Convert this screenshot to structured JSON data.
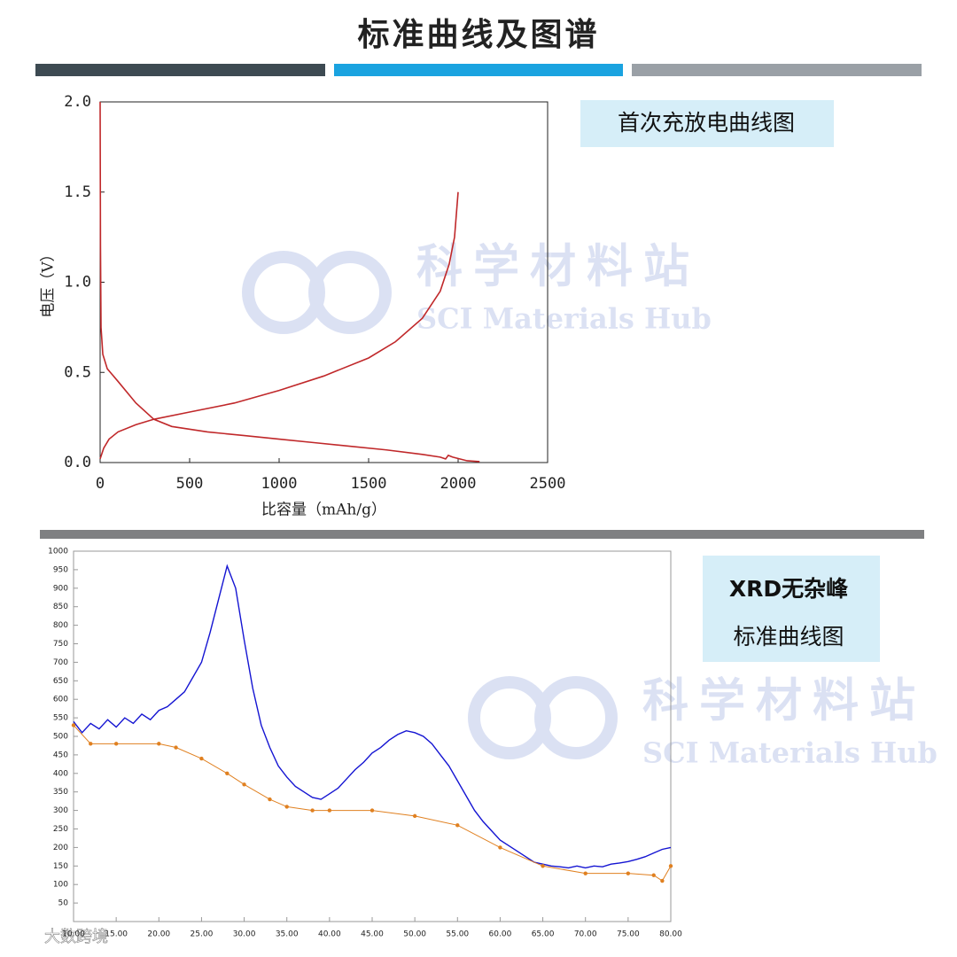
{
  "header": {
    "title": "标准曲线及图谱"
  },
  "chart_data": [
    {
      "type": "line",
      "annotation": "首次充放电曲线图",
      "xlabel": "比容量（mAh/g）",
      "ylabel": "电压（V）",
      "xlim": [
        0,
        2500
      ],
      "xticks": [
        0,
        500,
        1000,
        1500,
        2000,
        2500
      ],
      "ylim": [
        0,
        2.0
      ],
      "yticks": [
        {
          "value": 0,
          "label": "0.0"
        },
        {
          "value": 0.5,
          "label": "0.5"
        },
        {
          "value": 1.0,
          "label": "1.0"
        },
        {
          "value": 1.5,
          "label": "1.5"
        },
        {
          "value": 2.0,
          "label": "2.0"
        }
      ],
      "series": [
        {
          "color": "#c0282a",
          "x": [
            0,
            2,
            5,
            15,
            40,
            100,
            200,
            300,
            400,
            600,
            800,
            1000,
            1200,
            1400,
            1600,
            1800,
            1900,
            1930,
            1945,
            1970,
            2050,
            2120
          ],
          "values": [
            2.0,
            1.2,
            0.75,
            0.6,
            0.52,
            0.45,
            0.33,
            0.24,
            0.2,
            0.17,
            0.15,
            0.13,
            0.11,
            0.09,
            0.07,
            0.045,
            0.03,
            0.02,
            0.04,
            0.03,
            0.01,
            0.005
          ]
        },
        {
          "color": "#c0282a",
          "x": [
            0,
            20,
            50,
            100,
            200,
            300,
            500,
            750,
            1000,
            1250,
            1500,
            1650,
            1800,
            1900,
            1950,
            1980,
            2000
          ],
          "values": [
            0.02,
            0.08,
            0.13,
            0.17,
            0.21,
            0.24,
            0.28,
            0.33,
            0.4,
            0.48,
            0.58,
            0.67,
            0.8,
            0.95,
            1.1,
            1.25,
            1.5
          ]
        }
      ]
    },
    {
      "type": "line",
      "annotations": [
        "XRD无杂峰",
        "标准曲线图"
      ],
      "xlim": [
        10,
        80
      ],
      "xticks": [
        {
          "value": 10,
          "label": "10.00"
        },
        {
          "value": 15,
          "label": "15.00"
        },
        {
          "value": 20,
          "label": "20.00"
        },
        {
          "value": 25,
          "label": "25.00"
        },
        {
          "value": 30,
          "label": "30.00"
        },
        {
          "value": 35,
          "label": "35.00"
        },
        {
          "value": 40,
          "label": "40.00"
        },
        {
          "value": 45,
          "label": "45.00"
        },
        {
          "value": 50,
          "label": "50.00"
        },
        {
          "value": 55,
          "label": "55.00"
        },
        {
          "value": 60,
          "label": "60.00"
        },
        {
          "value": 65,
          "label": "65.00"
        },
        {
          "value": 70,
          "label": "70.00"
        },
        {
          "value": 75,
          "label": "75.00"
        },
        {
          "value": 80,
          "label": "80.00"
        }
      ],
      "ylim": [
        0,
        1000
      ],
      "yticks": [
        50,
        100,
        150,
        200,
        250,
        300,
        350,
        400,
        450,
        500,
        550,
        600,
        650,
        700,
        750,
        800,
        850,
        900,
        950,
        1000
      ],
      "series": [
        {
          "color": "#1414d2",
          "x": [
            10,
            11,
            12,
            13,
            14,
            15,
            16,
            17,
            18,
            19,
            20,
            21,
            22,
            23,
            24,
            25,
            26,
            27,
            28,
            29,
            30,
            31,
            32,
            33,
            34,
            35,
            36,
            37,
            38,
            39,
            40,
            41,
            42,
            43,
            44,
            45,
            46,
            47,
            48,
            49,
            50,
            51,
            52,
            53,
            54,
            55,
            56,
            57,
            58,
            59,
            60,
            61,
            62,
            63,
            64,
            65,
            66,
            67,
            68,
            69,
            70,
            71,
            72,
            73,
            74,
            75,
            76,
            77,
            78,
            79,
            80
          ],
          "values": [
            540,
            510,
            535,
            520,
            545,
            525,
            550,
            535,
            560,
            545,
            570,
            580,
            600,
            620,
            660,
            700,
            780,
            870,
            960,
            900,
            760,
            630,
            530,
            470,
            420,
            390,
            365,
            350,
            335,
            330,
            345,
            360,
            385,
            410,
            430,
            455,
            470,
            490,
            505,
            515,
            510,
            500,
            480,
            450,
            420,
            380,
            340,
            300,
            270,
            245,
            220,
            205,
            190,
            175,
            160,
            155,
            150,
            148,
            145,
            150,
            145,
            150,
            148,
            155,
            158,
            162,
            168,
            175,
            185,
            195,
            200
          ]
        },
        {
          "color": "#e08020",
          "x": [
            10,
            12,
            15,
            20,
            22,
            25,
            28,
            30,
            33,
            35,
            38,
            40,
            45,
            50,
            55,
            60,
            65,
            70,
            75,
            78,
            79,
            80
          ],
          "values": [
            530,
            480,
            480,
            480,
            470,
            440,
            400,
            370,
            330,
            310,
            300,
            300,
            300,
            285,
            260,
            200,
            150,
            130,
            130,
            125,
            110,
            150
          ]
        }
      ]
    }
  ],
  "watermark": {
    "text": "科学材料站",
    "subtext": "SCI Materials Hub"
  },
  "footer": {
    "source": "大数跨境"
  }
}
